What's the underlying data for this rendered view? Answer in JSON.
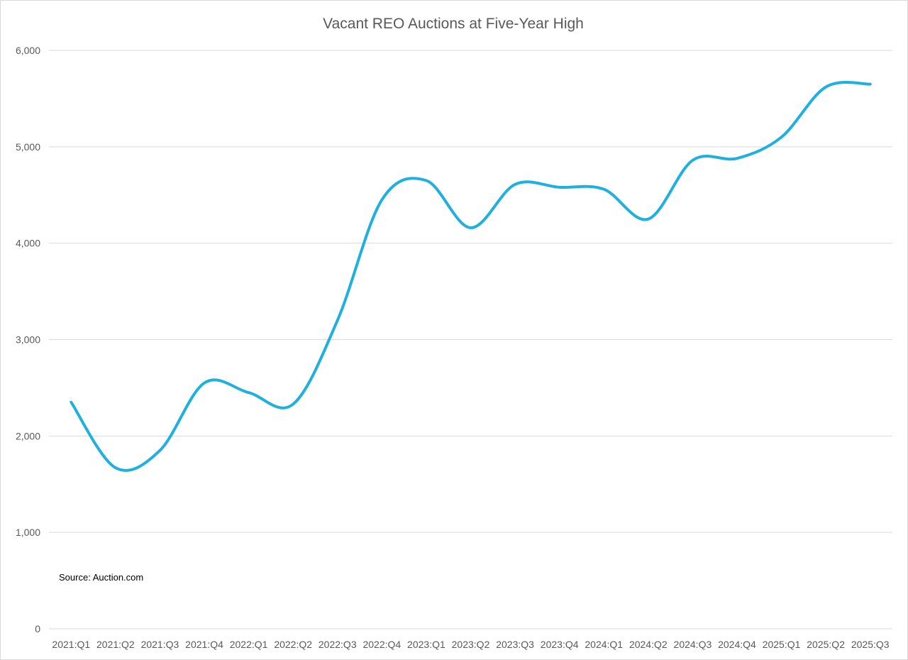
{
  "chart_data": {
    "type": "line",
    "title": "Vacant REO Auctions at Five-Year High",
    "xlabel": "",
    "ylabel": "",
    "ylim": [
      0,
      6000
    ],
    "y_ticks": [
      0,
      1000,
      2000,
      3000,
      4000,
      5000,
      6000
    ],
    "y_tick_labels": [
      "0",
      "1,000",
      "2,000",
      "3,000",
      "4,000",
      "5,000",
      "6,000"
    ],
    "grid": true,
    "legend": "none",
    "smooth": true,
    "categories": [
      "2021:Q1",
      "2021:Q2",
      "2021:Q3",
      "2021:Q4",
      "2022:Q1",
      "2022:Q2",
      "2022:Q3",
      "2022:Q4",
      "2023:Q1",
      "2023:Q2",
      "2023:Q3",
      "2023:Q4",
      "2024:Q1",
      "2024:Q2",
      "2024:Q3",
      "2024:Q4",
      "2025:Q1",
      "2025:Q2",
      "2025:Q3"
    ],
    "series": [
      {
        "name": "Vacant REO Auctions",
        "color": "#1fb0de",
        "values": [
          2350,
          1670,
          1850,
          2550,
          2450,
          2330,
          3200,
          4450,
          4650,
          4160,
          4610,
          4580,
          4560,
          4250,
          4860,
          4880,
          5100,
          5620,
          5650
        ]
      }
    ],
    "annotations": [
      {
        "text": "Source: Auction.com"
      }
    ]
  }
}
